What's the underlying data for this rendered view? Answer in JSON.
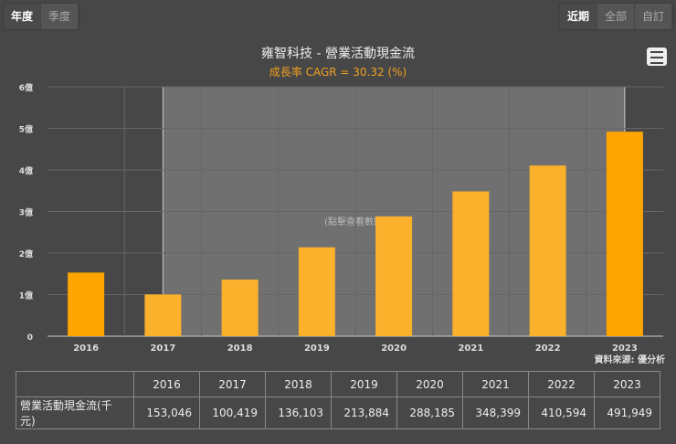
{
  "period_tabs": [
    "年度",
    "季度"
  ],
  "range_tabs": [
    "近期",
    "全部",
    "自訂"
  ],
  "chart_data": {
    "type": "bar",
    "title": "雍智科技 - 營業活動現金流",
    "subtitle": "成長率 CAGR = 30.32 (%)",
    "categories": [
      "2016",
      "2017",
      "2018",
      "2019",
      "2020",
      "2021",
      "2022",
      "2023"
    ],
    "values": [
      153046,
      100419,
      136103,
      213884,
      288185,
      348399,
      410594,
      491949
    ],
    "unit": "千元",
    "yticks": [
      "0",
      "1億",
      "2億",
      "3億",
      "4億",
      "5億",
      "6億"
    ],
    "ylim": [
      0,
      600000
    ],
    "grid": true,
    "selected_range": [
      "2017",
      "2023"
    ],
    "watermark": "(點擊查看數據)",
    "bar_color": "#ffa500",
    "selected_bar_color": "#fbb12c"
  },
  "source": "資料來源: 優分析",
  "table": {
    "row_label": "營業活動現金流(千元)",
    "values": [
      "153,046",
      "100,419",
      "136,103",
      "213,884",
      "288,185",
      "348,399",
      "410,594",
      "491,949"
    ]
  }
}
